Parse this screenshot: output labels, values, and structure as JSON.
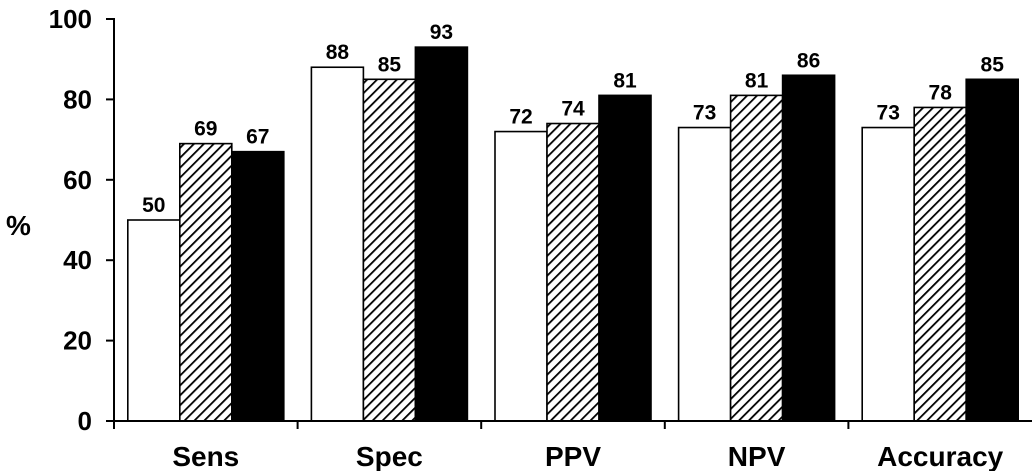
{
  "chart_data": {
    "type": "bar",
    "title": "",
    "xlabel": "",
    "ylabel": "%",
    "ylim": [
      0,
      100
    ],
    "yticks": [
      "0",
      "20",
      "40",
      "60",
      "80",
      "100"
    ],
    "grid": false,
    "legend": "none",
    "categories": [
      "Sens",
      "Spec",
      "PPV",
      "NPV",
      "Accuracy"
    ],
    "series": [
      {
        "fill": "white",
        "color": "#ffffff",
        "values": [
          50,
          88,
          72,
          73,
          73
        ]
      },
      {
        "fill": "hatched",
        "color": "#000000",
        "values": [
          69,
          85,
          74,
          81,
          78
        ]
      },
      {
        "fill": "solid",
        "color": "#000000",
        "values": [
          67,
          93,
          81,
          86,
          85
        ]
      }
    ]
  }
}
